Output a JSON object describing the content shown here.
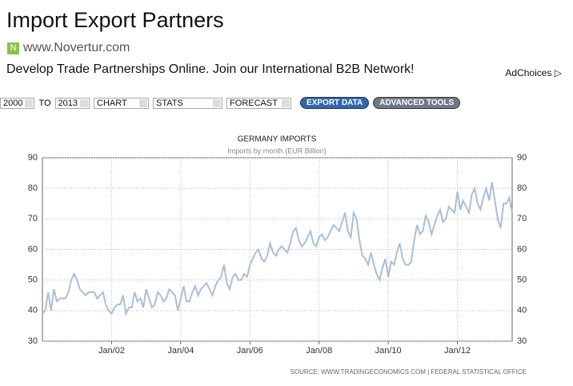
{
  "ad": {
    "title": "Import Export Partners",
    "icon": "N",
    "url": "www.Novertur.com",
    "text": "Develop Trade Partnerships Online. Join our International B2B Network!",
    "adchoices": "AdChoices"
  },
  "toolbar": {
    "from": "2000",
    "to_label": "TO",
    "to": "2013",
    "chart": "CHART",
    "stats": "STATS",
    "forecast": "FORECAST",
    "export": "EXPORT DATA",
    "advanced": "ADVANCED TOOLS"
  },
  "chart_data": {
    "type": "line",
    "title": "GERMANY IMPORTS",
    "subtitle": "Imports by month (EUR Billion)",
    "source": "SOURCE: WWW.TRADINGECONOMICS.COM  |  FEDERAL STATISTICAL OFFICE",
    "color": "#a9bfd9",
    "grid": true,
    "xlim": [
      "2000-01",
      "2013-08"
    ],
    "xticks": [
      {
        "value": "2002-01",
        "label": "Jan/02"
      },
      {
        "value": "2004-01",
        "label": "Jan/04"
      },
      {
        "value": "2006-01",
        "label": "Jan/06"
      },
      {
        "value": "2008-01",
        "label": "Jan/08"
      },
      {
        "value": "2010-01",
        "label": "Jan/10"
      },
      {
        "value": "2012-01",
        "label": "Jan/12"
      }
    ],
    "ylim": [
      30,
      90
    ],
    "yticks": [
      30,
      40,
      50,
      60,
      70,
      80,
      90
    ],
    "x": [
      "2000-01",
      "2000-02",
      "2000-03",
      "2000-04",
      "2000-05",
      "2000-06",
      "2000-07",
      "2000-08",
      "2000-09",
      "2000-10",
      "2000-11",
      "2000-12",
      "2001-01",
      "2001-02",
      "2001-03",
      "2001-04",
      "2001-05",
      "2001-06",
      "2001-07",
      "2001-08",
      "2001-09",
      "2001-10",
      "2001-11",
      "2001-12",
      "2002-01",
      "2002-02",
      "2002-03",
      "2002-04",
      "2002-05",
      "2002-06",
      "2002-07",
      "2002-08",
      "2002-09",
      "2002-10",
      "2002-11",
      "2002-12",
      "2003-01",
      "2003-02",
      "2003-03",
      "2003-04",
      "2003-05",
      "2003-06",
      "2003-07",
      "2003-08",
      "2003-09",
      "2003-10",
      "2003-11",
      "2003-12",
      "2004-01",
      "2004-02",
      "2004-03",
      "2004-04",
      "2004-05",
      "2004-06",
      "2004-07",
      "2004-08",
      "2004-09",
      "2004-10",
      "2004-11",
      "2004-12",
      "2005-01",
      "2005-02",
      "2005-03",
      "2005-04",
      "2005-05",
      "2005-06",
      "2005-07",
      "2005-08",
      "2005-09",
      "2005-10",
      "2005-11",
      "2005-12",
      "2006-01",
      "2006-02",
      "2006-03",
      "2006-04",
      "2006-05",
      "2006-06",
      "2006-07",
      "2006-08",
      "2006-09",
      "2006-10",
      "2006-11",
      "2006-12",
      "2007-01",
      "2007-02",
      "2007-03",
      "2007-04",
      "2007-05",
      "2007-06",
      "2007-07",
      "2007-08",
      "2007-09",
      "2007-10",
      "2007-11",
      "2007-12",
      "2008-01",
      "2008-02",
      "2008-03",
      "2008-04",
      "2008-05",
      "2008-06",
      "2008-07",
      "2008-08",
      "2008-09",
      "2008-10",
      "2008-11",
      "2008-12",
      "2009-01",
      "2009-02",
      "2009-03",
      "2009-04",
      "2009-05",
      "2009-06",
      "2009-07",
      "2009-08",
      "2009-09",
      "2009-10",
      "2009-11",
      "2009-12",
      "2010-01",
      "2010-02",
      "2010-03",
      "2010-04",
      "2010-05",
      "2010-06",
      "2010-07",
      "2010-08",
      "2010-09",
      "2010-10",
      "2010-11",
      "2010-12",
      "2011-01",
      "2011-02",
      "2011-03",
      "2011-04",
      "2011-05",
      "2011-06",
      "2011-07",
      "2011-08",
      "2011-09",
      "2011-10",
      "2011-11",
      "2011-12",
      "2012-01",
      "2012-02",
      "2012-03",
      "2012-04",
      "2012-05",
      "2012-06",
      "2012-07",
      "2012-08",
      "2012-09",
      "2012-10",
      "2012-11",
      "2012-12",
      "2013-01",
      "2013-02",
      "2013-03",
      "2013-04",
      "2013-05",
      "2013-06",
      "2013-07",
      "2013-08"
    ],
    "values": [
      39,
      40,
      46,
      40,
      47,
      43,
      44,
      44,
      44,
      46,
      50,
      52,
      50,
      47,
      46,
      45,
      46,
      46,
      46,
      44,
      45,
      46,
      42,
      40,
      39,
      41,
      42,
      42,
      45,
      39,
      41,
      41,
      46,
      43,
      44,
      41,
      47,
      44,
      41,
      42,
      46,
      45,
      43,
      44,
      47,
      46,
      45,
      40,
      44,
      48,
      43,
      43,
      46,
      48,
      45,
      47,
      48,
      49,
      47,
      45,
      48,
      50,
      51,
      55,
      49,
      47,
      51,
      52,
      50,
      50,
      52,
      51,
      55,
      57,
      59,
      60,
      57,
      56,
      58,
      62,
      59,
      58,
      60,
      61,
      60,
      59,
      62,
      66,
      67,
      63,
      61,
      62,
      64,
      66,
      62,
      61,
      64,
      65,
      63,
      64,
      66,
      68,
      67,
      66,
      69,
      72,
      66,
      64,
      72,
      70,
      63,
      58,
      57,
      55,
      59,
      55,
      52,
      50,
      54,
      57,
      51,
      56,
      55,
      59,
      62,
      57,
      55,
      55,
      56,
      63,
      68,
      65,
      66,
      71,
      69,
      65,
      68,
      71,
      73,
      69,
      70,
      74,
      73,
      72,
      79,
      73,
      76,
      74,
      72,
      78,
      80,
      75,
      73,
      77,
      80,
      76,
      82,
      76,
      70,
      67,
      75,
      75,
      77,
      72
    ]
  }
}
